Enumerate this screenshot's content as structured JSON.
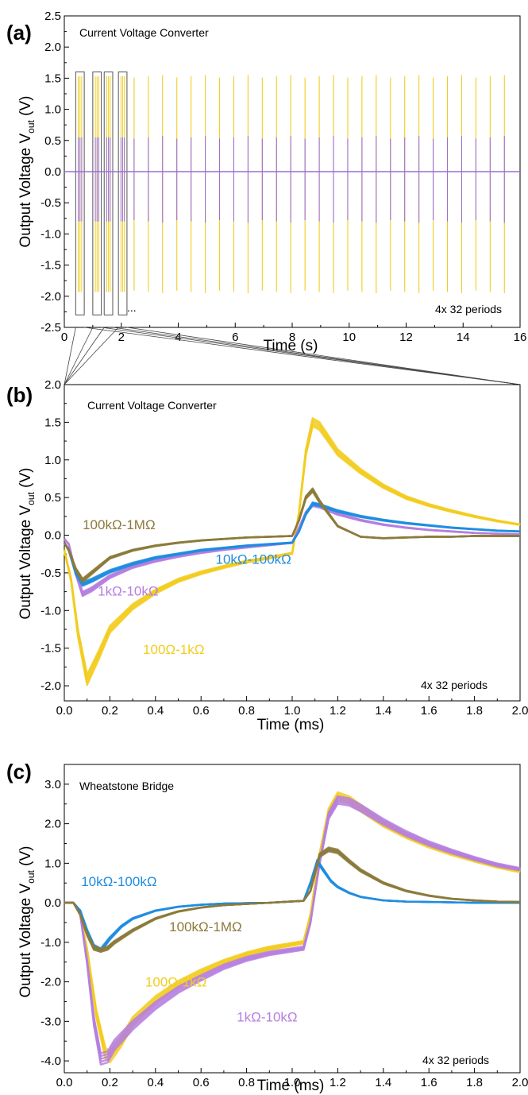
{
  "chart_data": [
    {
      "type": "line",
      "panel_label": "(a)",
      "title": "Current Voltage Converter",
      "xlabel": "Time (s)",
      "ylabel": "Output Voltage V",
      "ylabel_sub": "out",
      "ylabel_unit": " (V)",
      "xlim": [
        0,
        16
      ],
      "ylim": [
        -2.5,
        2.5
      ],
      "xticks": [
        0,
        2,
        4,
        6,
        8,
        10,
        12,
        14,
        16
      ],
      "yticks": [
        "2.5",
        "2.0",
        "1.5",
        "1.0",
        "0.5",
        "0.0",
        "-0.5",
        "-1.0",
        "-1.5",
        "-2.0",
        "-2.5"
      ],
      "ytick_values": [
        2.5,
        2.0,
        1.5,
        1.0,
        0.5,
        0.0,
        -0.5,
        -1.0,
        -1.5,
        -2.0,
        -2.5
      ],
      "note": "4x 32 periods",
      "ellipsis": "...",
      "baseline": 0.0,
      "baseline_color": "#9b6fd6",
      "pulse_times": [
        2.45,
        2.95,
        3.45,
        3.95,
        4.45,
        4.95,
        5.45,
        5.95,
        6.45,
        6.95,
        7.45,
        7.95,
        8.45,
        8.95,
        9.45,
        9.95,
        10.45,
        10.95,
        11.45,
        11.95,
        12.45,
        12.95,
        13.45,
        13.95,
        14.45,
        14.95,
        15.45
      ],
      "series": [
        {
          "color": "#f2cd1f",
          "upper": [
            -0.8,
            1.53
          ],
          "lower": [
            -1.93,
            -0.8
          ]
        },
        {
          "color": "#9b6fd6",
          "upper": [
            -0.5,
            0.55
          ],
          "lower": [
            -0.8,
            -0.5
          ]
        }
      ],
      "zoom_boxes": [
        [
          0.4,
          0.7
        ],
        [
          1.0,
          1.3
        ],
        [
          1.4,
          1.7
        ],
        [
          1.9,
          2.2
        ]
      ],
      "zoom_box_ylim": [
        -2.3,
        1.6
      ]
    },
    {
      "type": "line",
      "panel_label": "(b)",
      "title": "Current Voltage Converter",
      "xlabel": "Time (ms)",
      "ylabel": "Output Voltage V",
      "ylabel_sub": "out",
      "ylabel_unit": " (V)",
      "xlim": [
        0,
        2
      ],
      "ylim": [
        -2.2,
        2.0
      ],
      "xticks": [
        "0.0",
        "0.2",
        "0.4",
        "0.6",
        "0.8",
        "1.0",
        "1.2",
        "1.4",
        "1.6",
        "1.8",
        "2.0"
      ],
      "xtick_values": [
        0,
        0.2,
        0.4,
        0.6,
        0.8,
        1.0,
        1.2,
        1.4,
        1.6,
        1.8,
        2.0
      ],
      "yticks": [
        "2.0",
        "1.5",
        "1.0",
        "0.5",
        "0.0",
        "-0.5",
        "-1.0",
        "-1.5",
        "-2.0"
      ],
      "ytick_values": [
        2.0,
        1.5,
        1.0,
        0.5,
        0.0,
        -0.5,
        -1.0,
        -1.5,
        -2.0
      ],
      "note": "4x 32 periods",
      "series": [
        {
          "name": "100Ω-1kΩ",
          "color": "#f2cd1f",
          "x": [
            0,
            0.03,
            0.06,
            0.1,
            0.15,
            0.2,
            0.3,
            0.4,
            0.5,
            0.6,
            0.7,
            0.8,
            0.9,
            1.0,
            1.03,
            1.06,
            1.09,
            1.12,
            1.2,
            1.3,
            1.4,
            1.5,
            1.6,
            1.7,
            1.8,
            1.9,
            2.0
          ],
          "y": [
            -0.2,
            -0.6,
            -1.3,
            -1.92,
            -1.6,
            -1.25,
            -0.95,
            -0.75,
            -0.6,
            -0.5,
            -0.42,
            -0.35,
            -0.3,
            -0.24,
            0.3,
            1.1,
            1.5,
            1.45,
            1.1,
            0.85,
            0.65,
            0.5,
            0.4,
            0.32,
            0.25,
            0.19,
            0.14
          ]
        },
        {
          "name": "1kΩ-10kΩ",
          "color": "#b57ee0",
          "x": [
            0,
            0.02,
            0.05,
            0.08,
            0.12,
            0.2,
            0.3,
            0.4,
            0.5,
            0.6,
            0.7,
            0.8,
            0.9,
            1.0,
            1.03,
            1.06,
            1.09,
            1.12,
            1.2,
            1.3,
            1.4,
            1.5,
            1.6,
            1.7,
            1.8,
            1.9,
            2.0
          ],
          "y": [
            -0.05,
            -0.12,
            -0.5,
            -0.78,
            -0.72,
            -0.55,
            -0.42,
            -0.34,
            -0.28,
            -0.23,
            -0.19,
            -0.16,
            -0.13,
            -0.1,
            0.1,
            0.3,
            0.4,
            0.38,
            0.28,
            0.2,
            0.14,
            0.1,
            0.07,
            0.05,
            0.03,
            0.02,
            0.01
          ]
        },
        {
          "name": "10kΩ-100kΩ",
          "color": "#1f8de0",
          "x": [
            0,
            0.02,
            0.05,
            0.08,
            0.12,
            0.2,
            0.3,
            0.4,
            0.5,
            0.6,
            0.7,
            0.8,
            0.9,
            1.0,
            1.03,
            1.06,
            1.09,
            1.12,
            1.2,
            1.3,
            1.4,
            1.5,
            1.6,
            1.7,
            1.8,
            1.9,
            2.0
          ],
          "y": [
            -0.1,
            -0.2,
            -0.5,
            -0.65,
            -0.6,
            -0.48,
            -0.38,
            -0.3,
            -0.25,
            -0.2,
            -0.17,
            -0.14,
            -0.12,
            -0.1,
            0.05,
            0.28,
            0.42,
            0.4,
            0.32,
            0.25,
            0.2,
            0.16,
            0.13,
            0.1,
            0.08,
            0.06,
            0.05
          ]
        },
        {
          "name": "100kΩ-1MΩ",
          "color": "#8c7a3a",
          "x": [
            0,
            0.02,
            0.05,
            0.08,
            0.12,
            0.2,
            0.3,
            0.4,
            0.5,
            0.6,
            0.7,
            0.8,
            0.9,
            1.0,
            1.03,
            1.06,
            1.09,
            1.12,
            1.2,
            1.3,
            1.4,
            1.5,
            1.6,
            1.7,
            1.8,
            1.9,
            2.0
          ],
          "y": [
            -0.1,
            -0.2,
            -0.45,
            -0.6,
            -0.5,
            -0.3,
            -0.2,
            -0.14,
            -0.1,
            -0.07,
            -0.05,
            -0.03,
            -0.02,
            -0.01,
            0.2,
            0.5,
            0.6,
            0.45,
            0.12,
            -0.02,
            -0.04,
            -0.03,
            -0.02,
            -0.02,
            -0.01,
            -0.01,
            -0.01
          ]
        }
      ],
      "labels": [
        {
          "text": "100kΩ-1MΩ",
          "color": "#8c7a3a",
          "at": [
            0.24,
            0.08
          ]
        },
        {
          "text": "10kΩ-100kΩ",
          "color": "#1f8de0",
          "at": [
            0.83,
            -0.38
          ]
        },
        {
          "text": "1kΩ-10kΩ",
          "color": "#b57ee0",
          "at": [
            0.28,
            -0.8
          ]
        },
        {
          "text": "100Ω-1kΩ",
          "color": "#f2cd1f",
          "at": [
            0.48,
            -1.58
          ]
        }
      ]
    },
    {
      "type": "line",
      "panel_label": "(c)",
      "title": "Wheatstone Bridge",
      "xlabel": "Time (ms)",
      "ylabel": "Output Voltage V",
      "ylabel_sub": "out",
      "ylabel_unit": " (V)",
      "xlim": [
        0,
        2
      ],
      "ylim": [
        -4.3,
        3.5
      ],
      "xticks": [
        "0.0",
        "0.2",
        "0.4",
        "0.6",
        "0.8",
        "1.0",
        "1.2",
        "1.4",
        "1.6",
        "1.8",
        "2.0"
      ],
      "xtick_values": [
        0,
        0.2,
        0.4,
        0.6,
        0.8,
        1.0,
        1.2,
        1.4,
        1.6,
        1.8,
        2.0
      ],
      "yticks": [
        "3.0",
        "2.0",
        "1.0",
        "0.0",
        "-1.0",
        "-2.0",
        "-3.0",
        "-4.0"
      ],
      "ytick_values": [
        3.0,
        2.0,
        1.0,
        0.0,
        -1.0,
        -2.0,
        -3.0,
        -4.0
      ],
      "note": "4x 32 periods",
      "series": [
        {
          "name": "100Ω-1kΩ",
          "color": "#f2cd1f",
          "x": [
            0,
            0.04,
            0.07,
            0.1,
            0.14,
            0.18,
            0.2,
            0.25,
            0.3,
            0.4,
            0.5,
            0.6,
            0.7,
            0.8,
            0.9,
            1.05,
            1.08,
            1.12,
            1.16,
            1.2,
            1.25,
            1.3,
            1.4,
            1.5,
            1.6,
            1.7,
            1.8,
            1.9,
            2.0
          ],
          "y": [
            0,
            0,
            -0.3,
            -1.2,
            -2.8,
            -3.8,
            -3.9,
            -3.5,
            -3.0,
            -2.45,
            -2.05,
            -1.75,
            -1.5,
            -1.3,
            -1.15,
            -1.0,
            -0.3,
            1.2,
            2.3,
            2.7,
            2.6,
            2.4,
            2.0,
            1.7,
            1.45,
            1.25,
            1.08,
            0.92,
            0.8
          ]
        },
        {
          "name": "1kΩ-10kΩ",
          "color": "#b57ee0",
          "x": [
            0,
            0.04,
            0.07,
            0.1,
            0.13,
            0.16,
            0.19,
            0.22,
            0.3,
            0.4,
            0.5,
            0.6,
            0.7,
            0.8,
            0.9,
            1.05,
            1.08,
            1.12,
            1.16,
            1.2,
            1.25,
            1.3,
            1.4,
            1.5,
            1.6,
            1.7,
            1.8,
            1.9,
            2.0
          ],
          "y": [
            0,
            0,
            -0.3,
            -1.5,
            -3.0,
            -3.95,
            -3.9,
            -3.6,
            -3.1,
            -2.6,
            -2.2,
            -1.9,
            -1.62,
            -1.42,
            -1.28,
            -1.15,
            -0.5,
            1.0,
            2.2,
            2.6,
            2.55,
            2.4,
            2.05,
            1.75,
            1.5,
            1.3,
            1.12,
            0.96,
            0.85
          ]
        },
        {
          "name": "10kΩ-100kΩ",
          "color": "#1f8de0",
          "x": [
            0,
            0.04,
            0.07,
            0.1,
            0.13,
            0.16,
            0.2,
            0.25,
            0.3,
            0.4,
            0.5,
            0.6,
            0.7,
            0.8,
            0.9,
            1.05,
            1.08,
            1.11,
            1.14,
            1.17,
            1.2,
            1.25,
            1.3,
            1.4,
            1.5,
            1.6,
            1.7,
            1.8,
            1.9,
            2.0
          ],
          "y": [
            0,
            0,
            -0.2,
            -0.7,
            -1.1,
            -1.2,
            -0.9,
            -0.6,
            -0.4,
            -0.2,
            -0.1,
            -0.05,
            -0.02,
            -0.01,
            0,
            0.05,
            0.5,
            1.05,
            0.8,
            0.55,
            0.4,
            0.25,
            0.15,
            0.06,
            0.03,
            0.02,
            0.01,
            0,
            0,
            0
          ]
        },
        {
          "name": "100kΩ-1MΩ",
          "color": "#8c7a3a",
          "x": [
            0,
            0.04,
            0.07,
            0.1,
            0.13,
            0.16,
            0.19,
            0.22,
            0.3,
            0.4,
            0.5,
            0.6,
            0.7,
            0.8,
            0.9,
            1.05,
            1.08,
            1.12,
            1.16,
            1.2,
            1.25,
            1.3,
            1.4,
            1.5,
            1.6,
            1.7,
            1.8,
            1.9,
            2.0
          ],
          "y": [
            0,
            0,
            -0.3,
            -0.8,
            -1.15,
            -1.2,
            -1.15,
            -1.0,
            -0.7,
            -0.4,
            -0.22,
            -0.12,
            -0.06,
            -0.03,
            0,
            0.05,
            0.3,
            1.2,
            1.35,
            1.3,
            1.05,
            0.82,
            0.5,
            0.3,
            0.18,
            0.1,
            0.06,
            0.03,
            0.02
          ]
        }
      ],
      "labels": [
        {
          "text": "10kΩ-100kΩ",
          "color": "#1f8de0",
          "at": [
            0.24,
            0.42
          ]
        },
        {
          "text": "100kΩ-1MΩ",
          "color": "#8c7a3a",
          "at": [
            0.62,
            -0.72
          ]
        },
        {
          "text": "100Ω-1kΩ",
          "color": "#f2cd1f",
          "at": [
            0.49,
            -2.12
          ]
        },
        {
          "text": "1kΩ-10kΩ",
          "color": "#b57ee0",
          "at": [
            0.89,
            -3.0
          ]
        }
      ]
    }
  ]
}
